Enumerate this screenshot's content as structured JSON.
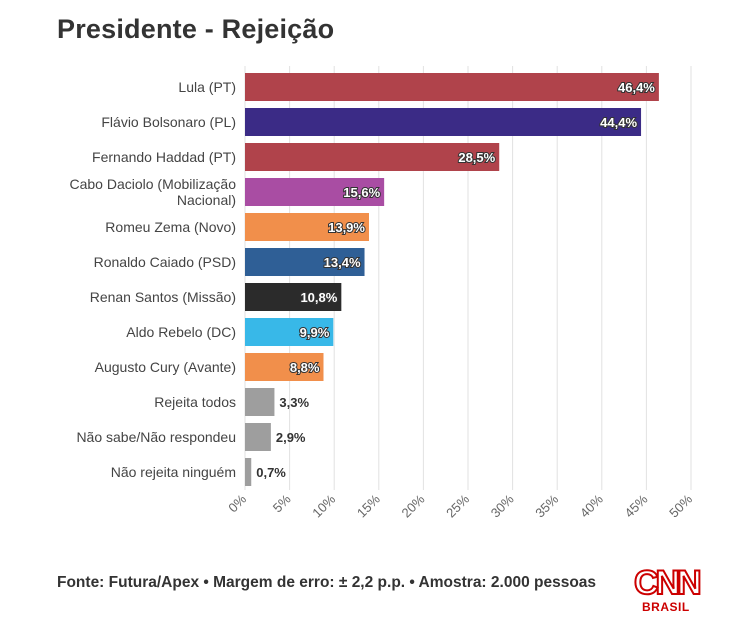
{
  "header": {
    "title": "Presidente - Rejeição"
  },
  "footer": {
    "source": "Fonte: Futura/Apex • Margem de erro: ± 2,2 p.p. • Amostra: 2.000 pessoas"
  },
  "logo": {
    "name": "CNN",
    "subtitle": "BRASIL",
    "color": "#cc0000"
  },
  "chart_data": {
    "type": "bar",
    "orientation": "horizontal",
    "title": "Presidente - Rejeição",
    "xlabel": "",
    "ylabel": "",
    "xlim": [
      0,
      50
    ],
    "grid": true,
    "tick_labels": [
      "0%",
      "5%",
      "10%",
      "15%",
      "20%",
      "25%",
      "30%",
      "35%",
      "40%",
      "45%",
      "50%"
    ],
    "categories": [
      [
        "Lula (PT)"
      ],
      [
        "Flávio Bolsonaro (PL)"
      ],
      [
        "Fernando Haddad (PT)"
      ],
      [
        "Cabo Daciolo (Mobilização",
        "Nacional)"
      ],
      [
        "Romeu Zema (Novo)"
      ],
      [
        "Ronaldo Caiado (PSD)"
      ],
      [
        "Renan Santos (Missão)"
      ],
      [
        "Aldo Rebelo (DC)"
      ],
      [
        "Augusto Cury (Avante)"
      ],
      [
        "Rejeita todos"
      ],
      [
        "Não sabe/Não respondeu"
      ],
      [
        "Não rejeita ninguém"
      ]
    ],
    "values": [
      46.4,
      44.4,
      28.5,
      15.6,
      13.9,
      13.4,
      10.8,
      9.9,
      8.8,
      3.3,
      2.9,
      0.7
    ],
    "value_labels": [
      "46,4%",
      "44,4%",
      "28,5%",
      "15,6%",
      "13,9%",
      "13,4%",
      "10,8%",
      "9,9%",
      "8,8%",
      "3,3%",
      "2,9%",
      "0,7%"
    ],
    "colors": [
      "#b0434b",
      "#3b2b86",
      "#b0434b",
      "#a94da3",
      "#f18f4b",
      "#2f5f96",
      "#2b2b2b",
      "#38b8e8",
      "#f18f4b",
      "#9e9e9e",
      "#9e9e9e",
      "#9e9e9e"
    ]
  }
}
